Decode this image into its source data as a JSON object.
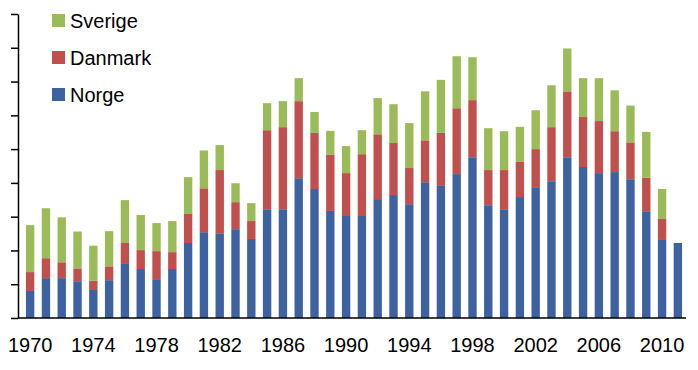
{
  "chart_data": {
    "type": "bar",
    "stacked": true,
    "legend": "top-left",
    "grid": false,
    "tick_labels": "x",
    "categories": [
      1970,
      null,
      null,
      null,
      1974,
      null,
      null,
      null,
      1978,
      null,
      null,
      null,
      1982,
      null,
      null,
      null,
      1986,
      null,
      null,
      null,
      1990,
      null,
      null,
      null,
      1994,
      null,
      null,
      null,
      1998,
      null,
      null,
      null,
      2002,
      null,
      null,
      null,
      2006,
      null,
      null,
      null,
      2010,
      null
    ],
    "ylim": [
      0,
      9
    ],
    "yticks": [
      0,
      1,
      2,
      3,
      4,
      5,
      6,
      7,
      8,
      9
    ],
    "series": [
      {
        "name": "Norge",
        "color": "#3d62a0",
        "values": [
          0.8,
          1.18,
          1.18,
          1.09,
          0.83,
          1.12,
          1.6,
          1.45,
          1.15,
          1.45,
          2.22,
          2.54,
          2.49,
          2.63,
          2.34,
          3.22,
          3.22,
          4.14,
          3.82,
          3.17,
          3.02,
          3.02,
          3.52,
          3.64,
          3.37,
          4.02,
          3.91,
          4.26,
          4.76,
          3.34,
          3.2,
          3.58,
          3.85,
          4.05,
          4.76,
          4.47,
          4.29,
          4.32,
          4.11,
          3.14,
          2.31,
          2.22
        ]
      },
      {
        "name": "Danmark",
        "color": "#c0504d",
        "values": [
          0.56,
          0.59,
          0.47,
          0.38,
          0.27,
          0.41,
          0.62,
          0.56,
          0.83,
          0.5,
          0.86,
          1.3,
          1.89,
          0.8,
          0.53,
          2.34,
          2.43,
          2.28,
          1.66,
          1.66,
          1.27,
          1.83,
          1.92,
          1.54,
          1.07,
          1.24,
          1.57,
          1.95,
          1.69,
          1.04,
          1.18,
          1.04,
          1.15,
          1.6,
          1.95,
          1.48,
          1.54,
          1.21,
          1.09,
          1.01,
          0.62,
          null
        ]
      },
      {
        "name": "Sverige",
        "color": "#9bbb59",
        "values": [
          1.39,
          1.48,
          1.33,
          1.09,
          1.04,
          1.04,
          1.27,
          1.04,
          0.83,
          0.92,
          1.09,
          1.12,
          0.74,
          0.56,
          0.53,
          0.8,
          0.77,
          0.68,
          0.62,
          0.71,
          0.8,
          0.71,
          1.07,
          1.15,
          1.33,
          1.45,
          1.57,
          1.54,
          1.27,
          1.24,
          1.15,
          1.04,
          1.15,
          1.24,
          1.27,
          1.15,
          1.27,
          1.21,
          1.09,
          1.36,
          0.89,
          null
        ]
      }
    ]
  }
}
